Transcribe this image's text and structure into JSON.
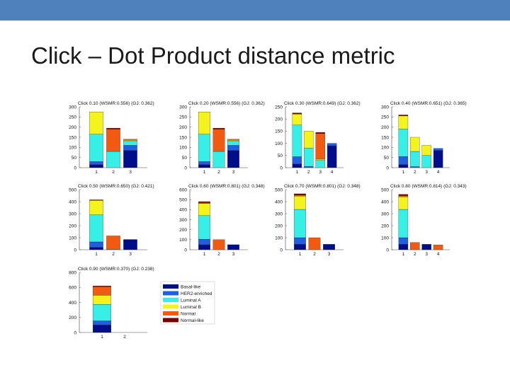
{
  "slide": {
    "title": "Click – Dot Product distance metric"
  },
  "colors": {
    "topbar": "#4f81bd",
    "Basal-like": "#000e8c",
    "HER2-enriched": "#1f5fe0",
    "Luminal A": "#36f0e8",
    "Luminal B": "#f4f41c",
    "Normal": "#f25a12",
    "Normal-like": "#7a0000"
  },
  "legend": {
    "entries": [
      "Basal-like",
      "HER2-enriched",
      "Luminal A",
      "Luminal B",
      "Normal",
      "Normal-like"
    ]
  },
  "chart_data": [
    {
      "type": "bar",
      "stacked": true,
      "title": "Click 0.10 (WSMR:0.556) (GJ: 0.362)",
      "categories": [
        "1",
        "2",
        "3"
      ],
      "ylim": [
        0,
        300
      ],
      "yticks": [
        0,
        50,
        100,
        150,
        200,
        250,
        300
      ],
      "series": [
        {
          "name": "Basal-like",
          "values": [
            15,
            0,
            85
          ]
        },
        {
          "name": "HER2-enriched",
          "values": [
            15,
            0,
            25
          ]
        },
        {
          "name": "Luminal A",
          "values": [
            135,
            80,
            20
          ]
        },
        {
          "name": "Luminal B",
          "values": [
            110,
            0,
            5
          ]
        },
        {
          "name": "Normal",
          "values": [
            0,
            110,
            5
          ]
        },
        {
          "name": "Normal-like",
          "values": [
            0,
            5,
            0
          ]
        }
      ]
    },
    {
      "type": "bar",
      "stacked": true,
      "title": "Click 0.20 (WSMR:0.556) (GJ: 0.362)",
      "categories": [
        "1",
        "2",
        "3"
      ],
      "ylim": [
        0,
        300
      ],
      "yticks": [
        0,
        50,
        100,
        150,
        200,
        250,
        300
      ],
      "series": [
        {
          "name": "Basal-like",
          "values": [
            15,
            0,
            85
          ]
        },
        {
          "name": "HER2-enriched",
          "values": [
            15,
            0,
            25
          ]
        },
        {
          "name": "Luminal A",
          "values": [
            135,
            80,
            20
          ]
        },
        {
          "name": "Luminal B",
          "values": [
            110,
            0,
            5
          ]
        },
        {
          "name": "Normal",
          "values": [
            0,
            110,
            5
          ]
        },
        {
          "name": "Normal-like",
          "values": [
            0,
            5,
            0
          ]
        }
      ]
    },
    {
      "type": "bar",
      "stacked": true,
      "title": "Click 0.30 (WSMR:0.649) (GJ: 0.362)",
      "categories": [
        "1",
        "2",
        "3",
        "4"
      ],
      "ylim": [
        0,
        250
      ],
      "yticks": [
        0,
        50,
        100,
        150,
        200,
        250
      ],
      "series": [
        {
          "name": "Basal-like",
          "values": [
            15,
            0,
            0,
            90
          ]
        },
        {
          "name": "HER2-enriched",
          "values": [
            30,
            5,
            0,
            10
          ]
        },
        {
          "name": "Luminal A",
          "values": [
            130,
            75,
            30,
            0
          ]
        },
        {
          "name": "Luminal B",
          "values": [
            45,
            70,
            5,
            0
          ]
        },
        {
          "name": "Normal",
          "values": [
            0,
            0,
            105,
            0
          ]
        },
        {
          "name": "Normal-like",
          "values": [
            5,
            0,
            5,
            0
          ]
        }
      ]
    },
    {
      "type": "bar",
      "stacked": true,
      "title": "Click 0.40 (WSMR:0.651) (GJ: 0.365)",
      "categories": [
        "1",
        "2",
        "3",
        "4"
      ],
      "ylim": [
        0,
        300
      ],
      "yticks": [
        0,
        50,
        100,
        150,
        200,
        250,
        300
      ],
      "series": [
        {
          "name": "Basal-like",
          "values": [
            15,
            0,
            0,
            85
          ]
        },
        {
          "name": "HER2-enriched",
          "values": [
            40,
            5,
            0,
            10
          ]
        },
        {
          "name": "Luminal A",
          "values": [
            135,
            75,
            60,
            0
          ]
        },
        {
          "name": "Luminal B",
          "values": [
            65,
            70,
            50,
            0
          ]
        },
        {
          "name": "Normal",
          "values": [
            0,
            0,
            0,
            0
          ]
        },
        {
          "name": "Normal-like",
          "values": [
            5,
            0,
            0,
            0
          ]
        }
      ]
    },
    {
      "type": "bar",
      "stacked": true,
      "title": "Click 0.50 (WSMR:0.650) (GJ: 0.421)",
      "categories": [
        "1",
        "2",
        "3"
      ],
      "ylim": [
        0,
        500
      ],
      "yticks": [
        0,
        100,
        200,
        300,
        400,
        500
      ],
      "series": [
        {
          "name": "Basal-like",
          "values": [
            20,
            0,
            85
          ]
        },
        {
          "name": "HER2-enriched",
          "values": [
            45,
            0,
            0
          ]
        },
        {
          "name": "Luminal A",
          "values": [
            225,
            5,
            0
          ]
        },
        {
          "name": "Luminal B",
          "values": [
            120,
            0,
            0
          ]
        },
        {
          "name": "Normal",
          "values": [
            0,
            110,
            0
          ]
        },
        {
          "name": "Normal-like",
          "values": [
            5,
            0,
            0
          ]
        }
      ]
    },
    {
      "type": "bar",
      "stacked": true,
      "title": "Click 0.60 (WSMR:0.801) (GJ: 0.348)",
      "categories": [
        "1",
        "2",
        "3"
      ],
      "ylim": [
        0,
        600
      ],
      "yticks": [
        0,
        100,
        200,
        300,
        400,
        500,
        600
      ],
      "series": [
        {
          "name": "Basal-like",
          "values": [
            50,
            0,
            50
          ]
        },
        {
          "name": "HER2-enriched",
          "values": [
            55,
            0,
            0
          ]
        },
        {
          "name": "Luminal A",
          "values": [
            235,
            0,
            0
          ]
        },
        {
          "name": "Luminal B",
          "values": [
            120,
            0,
            0
          ]
        },
        {
          "name": "Normal",
          "values": [
            10,
            100,
            0
          ]
        },
        {
          "name": "Normal-like",
          "values": [
            10,
            0,
            0
          ]
        }
      ]
    },
    {
      "type": "bar",
      "stacked": true,
      "title": "Click 0.70 (WSMR:0.801) (GJ: 0.348)",
      "categories": [
        "1",
        "2",
        "3"
      ],
      "ylim": [
        0,
        500
      ],
      "yticks": [
        0,
        100,
        200,
        300,
        400,
        500
      ],
      "series": [
        {
          "name": "Basal-like",
          "values": [
            45,
            0,
            45
          ]
        },
        {
          "name": "HER2-enriched",
          "values": [
            55,
            0,
            0
          ]
        },
        {
          "name": "Luminal A",
          "values": [
            235,
            0,
            0
          ]
        },
        {
          "name": "Luminal B",
          "values": [
            110,
            0,
            0
          ]
        },
        {
          "name": "Normal",
          "values": [
            10,
            100,
            0
          ]
        },
        {
          "name": "Normal-like",
          "values": [
            10,
            0,
            0
          ]
        }
      ]
    },
    {
      "type": "bar",
      "stacked": true,
      "title": "Click 0.80 (WSMR:0.814) (GJ: 0.343)",
      "categories": [
        "1",
        "2",
        "3",
        "4"
      ],
      "ylim": [
        0,
        500
      ],
      "yticks": [
        0,
        100,
        200,
        300,
        400,
        500
      ],
      "series": [
        {
          "name": "Basal-like",
          "values": [
            45,
            0,
            45,
            0
          ]
        },
        {
          "name": "HER2-enriched",
          "values": [
            55,
            0,
            0,
            0
          ]
        },
        {
          "name": "Luminal A",
          "values": [
            235,
            0,
            0,
            0
          ]
        },
        {
          "name": "Luminal B",
          "values": [
            105,
            0,
            0,
            0
          ]
        },
        {
          "name": "Normal",
          "values": [
            10,
            60,
            0,
            40
          ]
        },
        {
          "name": "Normal-like",
          "values": [
            10,
            0,
            0,
            0
          ]
        }
      ]
    },
    {
      "type": "bar",
      "stacked": true,
      "title": "Click 0.90 (WSMR:0.370) (GJ: 0.238)",
      "categories": [
        "1",
        "2"
      ],
      "ylim": [
        0,
        800
      ],
      "yticks": [
        0,
        200,
        400,
        600,
        800
      ],
      "series": [
        {
          "name": "Basal-like",
          "values": [
            100,
            0
          ]
        },
        {
          "name": "HER2-enriched",
          "values": [
            55,
            0
          ]
        },
        {
          "name": "Luminal A",
          "values": [
            220,
            0
          ]
        },
        {
          "name": "Luminal B",
          "values": [
            120,
            0
          ]
        },
        {
          "name": "Normal",
          "values": [
            115,
            0
          ]
        },
        {
          "name": "Normal-like",
          "values": [
            10,
            0
          ]
        }
      ]
    }
  ]
}
